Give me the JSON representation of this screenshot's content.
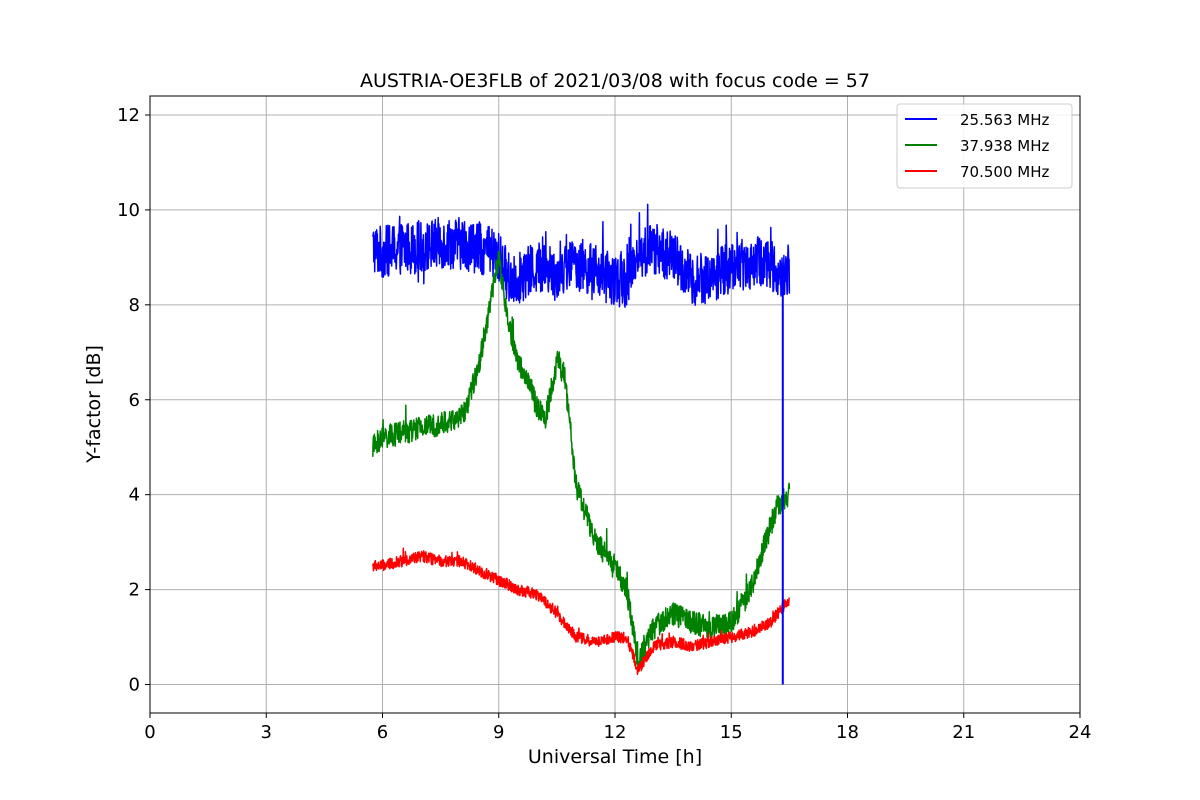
{
  "chart_data": {
    "type": "line",
    "title": "AUSTRIA-OE3FLB of 2021/03/08 with focus code = 57",
    "xlabel": "Universal Time [h]",
    "ylabel": "Y-factor [dB]",
    "xlim": [
      0,
      24
    ],
    "ylim": [
      -0.6,
      12.4
    ],
    "xticks": [
      0,
      3,
      6,
      9,
      12,
      15,
      18,
      21,
      24
    ],
    "yticks": [
      0,
      2,
      4,
      6,
      8,
      10,
      12
    ],
    "grid": true,
    "legend_position": "top-right",
    "series": [
      {
        "name": "25.563 MHz",
        "color": "#0000ff",
        "noise": 0.55,
        "x": [
          5.75,
          6.0,
          6.5,
          7.0,
          7.5,
          8.0,
          8.5,
          9.0,
          9.3,
          9.6,
          10.0,
          10.5,
          11.0,
          11.5,
          12.0,
          12.3,
          12.5,
          13.0,
          13.5,
          14.0,
          14.5,
          15.0,
          15.5,
          16.0,
          16.3,
          16.5
        ],
        "y": [
          9.2,
          9.1,
          9.2,
          9.2,
          9.3,
          9.3,
          9.2,
          9.0,
          8.5,
          8.6,
          8.8,
          8.7,
          8.9,
          8.7,
          8.5,
          8.5,
          9.0,
          9.2,
          9.0,
          8.5,
          8.6,
          8.8,
          8.9,
          8.9,
          8.5,
          8.8
        ]
      },
      {
        "name": "37.938 MHz",
        "color": "#008000",
        "noise": 0.25,
        "x": [
          5.75,
          6.0,
          6.5,
          7.0,
          7.5,
          8.0,
          8.2,
          8.5,
          8.8,
          9.0,
          9.2,
          9.5,
          9.8,
          10.0,
          10.2,
          10.5,
          10.7,
          11.0,
          11.5,
          12.0,
          12.3,
          12.6,
          13.0,
          13.5,
          14.0,
          14.5,
          15.0,
          15.5,
          15.8,
          16.0,
          16.2,
          16.5
        ],
        "y": [
          5.0,
          5.2,
          5.3,
          5.4,
          5.5,
          5.6,
          5.9,
          6.8,
          8.1,
          9.0,
          7.8,
          6.8,
          6.3,
          5.8,
          5.6,
          6.8,
          6.5,
          4.2,
          3.0,
          2.5,
          2.0,
          0.5,
          1.2,
          1.5,
          1.3,
          1.2,
          1.3,
          2.0,
          2.8,
          3.3,
          3.8,
          4.0
        ]
      },
      {
        "name": "70.500 MHz",
        "color": "#ff0000",
        "noise": 0.12,
        "x": [
          5.75,
          6.0,
          6.5,
          7.0,
          7.5,
          8.0,
          8.5,
          9.0,
          9.5,
          10.0,
          10.5,
          11.0,
          11.5,
          12.0,
          12.3,
          12.6,
          13.0,
          13.5,
          14.0,
          14.5,
          15.0,
          15.5,
          16.0,
          16.5
        ],
        "y": [
          2.5,
          2.5,
          2.6,
          2.7,
          2.6,
          2.6,
          2.4,
          2.2,
          2.0,
          1.9,
          1.5,
          1.0,
          0.9,
          1.0,
          1.0,
          0.3,
          0.8,
          0.9,
          0.8,
          0.9,
          1.0,
          1.1,
          1.3,
          1.8
        ]
      }
    ],
    "annotations": [
      {
        "series": "25.563 MHz",
        "type": "vertical-drop",
        "x": 16.33,
        "y_from": 8.3,
        "y_to": 0.0
      }
    ]
  }
}
